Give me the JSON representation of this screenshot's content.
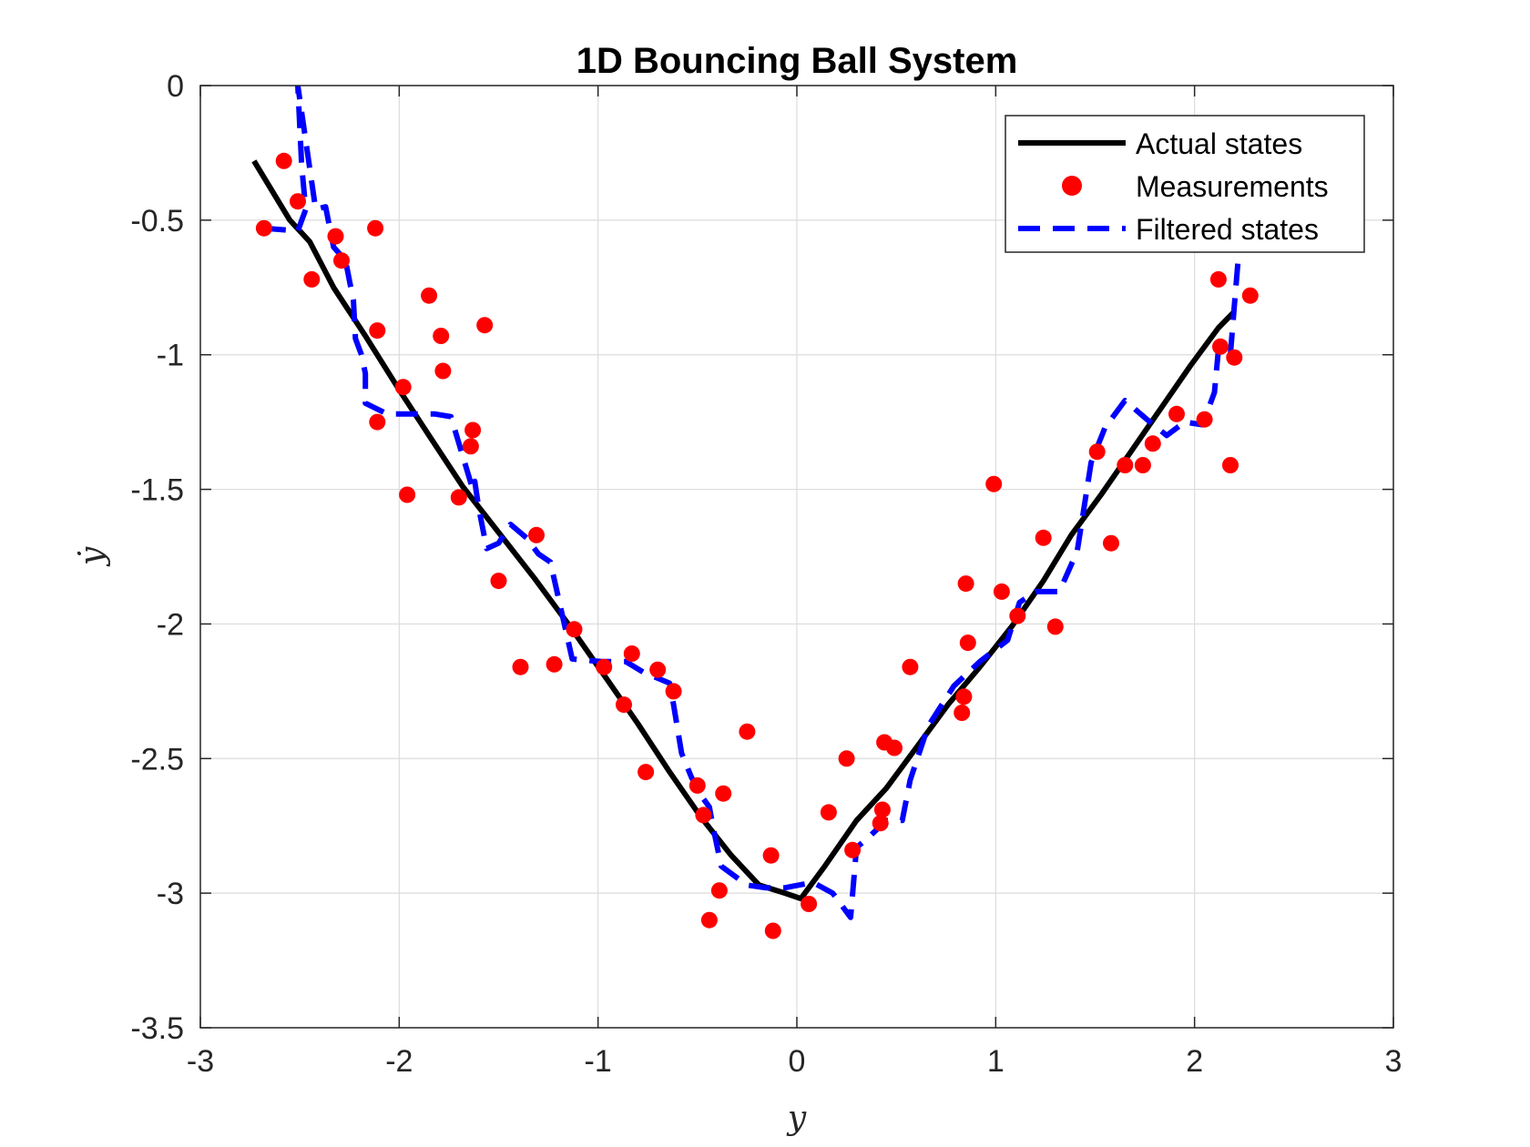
{
  "chart_data": {
    "type": "line",
    "title": "1D Bouncing Ball System",
    "xlabel": "y",
    "ylabel": "ẏ",
    "xlim": [
      -3,
      3
    ],
    "ylim": [
      -3.5,
      0
    ],
    "xticks": [
      "-3",
      "-2",
      "-1",
      "0",
      "1",
      "2",
      "3"
    ],
    "yticks": [
      "0",
      "-0.5",
      "-1",
      "-1.5",
      "-2",
      "-2.5",
      "-3",
      "-3.5"
    ],
    "grid": true,
    "legend_position": "top-right",
    "colors": {
      "actual": "#000000",
      "measurements": "#ff0000",
      "filtered": "#0000ff"
    },
    "series": [
      {
        "name": "Actual states",
        "style": "solid",
        "x": [
          -2.73,
          -2.55,
          -2.45,
          -2.33,
          -2.17,
          -2.0,
          -1.85,
          -1.68,
          -1.5,
          -1.32,
          -1.14,
          -0.96,
          -0.8,
          -0.64,
          -0.48,
          -0.33,
          -0.19,
          -0.06,
          0.02,
          0.14,
          0.3,
          0.45,
          0.6,
          0.76,
          0.92,
          1.08,
          1.24,
          1.38,
          1.53,
          1.68,
          1.83,
          1.98,
          2.12,
          2.2
        ],
        "y": [
          -0.28,
          -0.5,
          -0.58,
          -0.75,
          -0.93,
          -1.13,
          -1.3,
          -1.49,
          -1.66,
          -1.83,
          -2.01,
          -2.2,
          -2.37,
          -2.55,
          -2.72,
          -2.86,
          -2.97,
          -3.0,
          -3.02,
          -2.9,
          -2.73,
          -2.61,
          -2.46,
          -2.3,
          -2.16,
          -2.01,
          -1.84,
          -1.67,
          -1.52,
          -1.36,
          -1.2,
          -1.04,
          -0.9,
          -0.84
        ]
      },
      {
        "name": "Measurements",
        "style": "markers",
        "x": [
          -2.68,
          -2.58,
          -2.51,
          -2.44,
          -2.32,
          -2.29,
          -2.12,
          -2.11,
          -2.11,
          -1.98,
          -1.96,
          -1.85,
          -1.79,
          -1.78,
          -1.7,
          -1.64,
          -1.63,
          -1.57,
          -1.5,
          -1.39,
          -1.31,
          -1.22,
          -1.12,
          -0.97,
          -0.87,
          -0.83,
          -0.76,
          -0.7,
          -0.62,
          -0.5,
          -0.47,
          -0.44,
          -0.39,
          -0.37,
          -0.25,
          -0.13,
          -0.12,
          0.06,
          0.16,
          0.25,
          0.28,
          0.42,
          0.43,
          0.44,
          0.49,
          0.57,
          0.83,
          0.84,
          0.85,
          0.86,
          0.99,
          1.03,
          1.11,
          1.24,
          1.3,
          1.51,
          1.58,
          1.65,
          1.74,
          1.79,
          1.91,
          2.05,
          2.12,
          2.13,
          2.18,
          2.2,
          2.28
        ],
        "y": [
          -0.53,
          -0.28,
          -0.43,
          -0.72,
          -0.56,
          -0.65,
          -0.53,
          -0.91,
          -1.25,
          -1.12,
          -1.52,
          -0.78,
          -0.93,
          -1.06,
          -1.53,
          -1.34,
          -1.28,
          -0.89,
          -1.84,
          -2.16,
          -1.67,
          -2.15,
          -2.02,
          -2.16,
          -2.3,
          -2.11,
          -2.55,
          -2.17,
          -2.25,
          -2.6,
          -2.71,
          -3.1,
          -2.99,
          -2.63,
          -2.4,
          -2.86,
          -3.14,
          -3.04,
          -2.7,
          -2.5,
          -2.84,
          -2.74,
          -2.69,
          -2.44,
          -2.46,
          -2.16,
          -2.33,
          -2.27,
          -1.85,
          -2.07,
          -1.48,
          -1.88,
          -1.97,
          -1.68,
          -2.01,
          -1.36,
          -1.7,
          -1.41,
          -1.41,
          -1.33,
          -1.22,
          -1.24,
          -0.72,
          -0.97,
          -1.41,
          -1.01,
          -0.78
        ]
      },
      {
        "name": "Filtered states",
        "style": "dashed",
        "x": [
          -2.68,
          -2.51,
          -2.47,
          -2.49,
          -2.51,
          -2.42,
          -2.37,
          -2.33,
          -2.27,
          -2.23,
          -2.22,
          -2.19,
          -2.17,
          -2.17,
          -2.06,
          -1.98,
          -1.82,
          -1.74,
          -1.63,
          -1.62,
          -1.6,
          -1.56,
          -1.5,
          -1.44,
          -1.36,
          -1.3,
          -1.24,
          -1.13,
          -0.98,
          -0.86,
          -0.77,
          -0.64,
          -0.62,
          -0.58,
          -0.53,
          -0.47,
          -0.44,
          -0.42,
          -0.38,
          -0.25,
          -0.16,
          -0.06,
          0.08,
          0.18,
          0.27,
          0.3,
          0.35,
          0.45,
          0.53,
          0.57,
          0.66,
          0.79,
          0.92,
          1.06,
          1.12,
          1.2,
          1.32,
          1.41,
          1.48,
          1.55,
          1.65,
          1.76,
          1.86,
          1.95,
          2.04,
          2.1,
          2.12,
          2.18,
          2.2,
          2.22,
          2.25
        ],
        "y": [
          -0.53,
          -0.54,
          -0.46,
          -0.3,
          0.0,
          -0.46,
          -0.45,
          -0.6,
          -0.65,
          -0.8,
          -0.94,
          -1.0,
          -1.07,
          -1.18,
          -1.22,
          -1.22,
          -1.22,
          -1.23,
          -1.5,
          -1.47,
          -1.57,
          -1.72,
          -1.7,
          -1.63,
          -1.68,
          -1.74,
          -1.77,
          -2.13,
          -2.14,
          -2.14,
          -2.18,
          -2.22,
          -2.3,
          -2.48,
          -2.57,
          -2.65,
          -2.68,
          -2.76,
          -2.9,
          -2.97,
          -2.98,
          -2.98,
          -2.96,
          -3.0,
          -3.09,
          -2.83,
          -2.8,
          -2.73,
          -2.73,
          -2.58,
          -2.38,
          -2.23,
          -2.14,
          -2.06,
          -1.92,
          -1.88,
          -1.88,
          -1.73,
          -1.4,
          -1.27,
          -1.17,
          -1.24,
          -1.3,
          -1.25,
          -1.26,
          -1.14,
          -0.98,
          -1.0,
          -0.82,
          -0.64,
          -0.25
        ]
      }
    ]
  }
}
